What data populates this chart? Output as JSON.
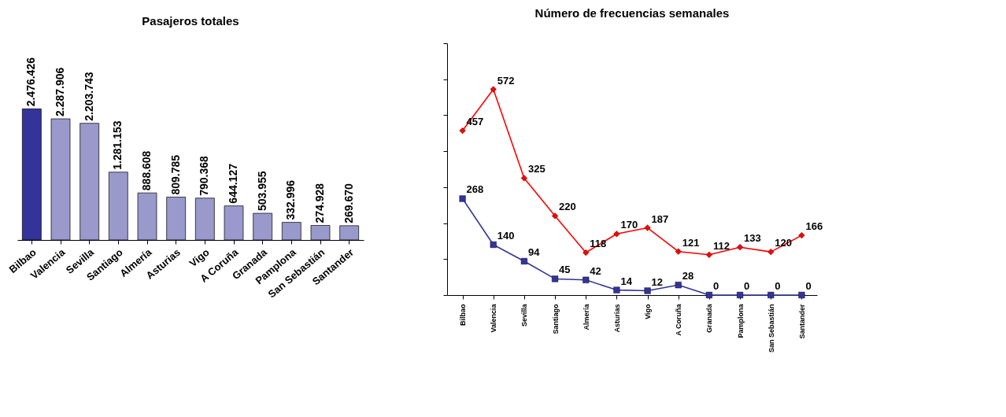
{
  "chart_data": [
    {
      "type": "bar",
      "title": "Pasajeros totales",
      "categories": [
        "Bilbao",
        "Valencia",
        "Sevilla",
        "Santiago",
        "Almería",
        "Asturias",
        "Vigo",
        "A Coruña",
        "Granada",
        "Pamplona",
        "San Sebastián",
        "Santander"
      ],
      "values": [
        2476426,
        2287906,
        2203743,
        1281153,
        888608,
        809785,
        790368,
        644127,
        503955,
        332996,
        274928,
        269670
      ],
      "value_labels": [
        "2.476.426",
        "2.287.906",
        "2.203.743",
        "1.281.153",
        "888.608",
        "809.785",
        "790.368",
        "644.127",
        "503.955",
        "332.996",
        "274.928",
        "269.670"
      ],
      "colors": [
        "#333399",
        "#9999cc",
        "#9999cc",
        "#9999cc",
        "#9999cc",
        "#9999cc",
        "#9999cc",
        "#9999cc",
        "#9999cc",
        "#9999cc",
        "#9999cc",
        "#9999cc"
      ],
      "tick_labels": "x"
    },
    {
      "type": "line",
      "title": "Número de frecuencias semanales",
      "categories": [
        "Bilbao",
        "Valencia",
        "Sevilla",
        "Santiago",
        "Almería",
        "Asturias",
        "Vigo",
        "A Coruña",
        "Granada",
        "Pamplona",
        "San Sebastián",
        "Santander"
      ],
      "series": [
        {
          "color": "#ff0000",
          "marker": "diamond",
          "values": [
            457,
            572,
            325,
            220,
            118,
            170,
            187,
            121,
            112,
            133,
            120,
            166
          ]
        },
        {
          "color": "#333399",
          "marker": "square",
          "values": [
            268,
            140,
            94,
            45,
            42,
            14,
            12,
            28,
            0,
            0,
            0,
            0
          ]
        }
      ],
      "ylim": [
        0,
        700
      ],
      "yticks": [
        0,
        {
          "value": 100,
          "label": null
        },
        {
          "value": 200,
          "label": null
        },
        {
          "value": 300,
          "label": null
        },
        {
          "value": 400,
          "label": null
        },
        {
          "value": 500,
          "label": null
        },
        {
          "value": 600,
          "label": null
        },
        {
          "value": 700,
          "label": null
        }
      ],
      "data_labels": true,
      "grid": false,
      "tick_labels": "x"
    }
  ]
}
